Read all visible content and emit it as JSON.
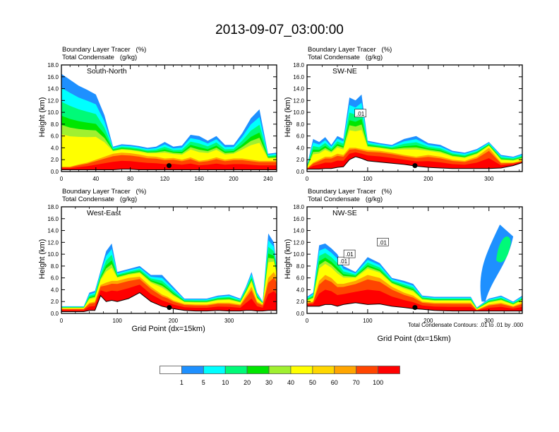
{
  "title": "2013-09-07_03:00:00",
  "chart_data": [
    {
      "type": "heatmap",
      "panel": "top-left",
      "cross_section": "South-North",
      "title_lines": [
        "Boundary Layer Tracer   (%)",
        "Total Condensate   (g/kg)"
      ],
      "ylabel": "Height (km)",
      "xlabel": "",
      "xlim": [
        0,
        250
      ],
      "ylim": [
        0,
        18
      ],
      "xticks": [
        "0",
        "40",
        "80",
        "120",
        "160",
        "200",
        "240"
      ],
      "xtick_values": [
        0,
        40,
        80,
        120,
        160,
        200,
        240
      ],
      "yticks": [
        "0.0",
        "2.0",
        "4.0",
        "6.0",
        "8.0",
        "10.0",
        "12.0",
        "14.0",
        "16.0",
        "18.0"
      ],
      "marker_point": {
        "x": 125,
        "y": 1.0
      },
      "tracer_profile": {
        "x": [
          0,
          10,
          20,
          30,
          40,
          50,
          60,
          70,
          80,
          90,
          100,
          110,
          120,
          130,
          140,
          150,
          160,
          170,
          180,
          190,
          200,
          210,
          220,
          230,
          240,
          250
        ],
        "top_km": [
          16.5,
          15.5,
          14.5,
          13.8,
          13,
          9.5,
          4.2,
          4.6,
          4.5,
          4.3,
          4.0,
          4.2,
          5.0,
          4.2,
          4.4,
          6.2,
          6.0,
          5.2,
          6.0,
          4.5,
          4.5,
          6.5,
          9.0,
          10.5,
          3.0,
          3.2
        ],
        "core_km": [
          0.8,
          0.8,
          1.2,
          1.5,
          2.0,
          2.5,
          3.0,
          3.2,
          3.1,
          2.9,
          2.6,
          2.5,
          2.2,
          2.3,
          2.0,
          2.4,
          1.8,
          2.0,
          2.4,
          2.0,
          2.2,
          2.2,
          2.0,
          1.8,
          1.8,
          1.8
        ],
        "terrain_km": [
          0.3,
          0.3,
          0.3,
          0.3,
          0.3,
          0.3,
          0.3,
          0.4,
          0.4,
          0.3,
          0.3,
          0.3,
          0.3,
          0.3,
          0.3,
          0.3,
          0.3,
          0.3,
          0.3,
          0.3,
          0.3,
          0.3,
          0.3,
          0.3,
          0.3,
          0.3
        ]
      }
    },
    {
      "type": "heatmap",
      "panel": "top-right",
      "cross_section": "SW-NE",
      "title_lines": [
        "Boundary Layer Tracer   (%)",
        "Total Condensate   (g/kg)"
      ],
      "ylabel": "Height (km)",
      "xlabel": "",
      "xlim": [
        0,
        355
      ],
      "ylim": [
        0,
        18
      ],
      "xticks": [
        "0",
        "100",
        "200",
        "300"
      ],
      "xtick_values": [
        0,
        100,
        200,
        300
      ],
      "yticks": [
        "0.0",
        "2.0",
        "4.0",
        "6.0",
        "8.0",
        "10.0",
        "12.0",
        "14.0",
        "16.0",
        "18.0"
      ],
      "marker_point": {
        "x": 178,
        "y": 1.0
      },
      "contour_labels": [
        ".01"
      ],
      "tracer_profile": {
        "x": [
          0,
          10,
          20,
          30,
          40,
          50,
          60,
          70,
          80,
          90,
          100,
          120,
          140,
          160,
          180,
          200,
          220,
          240,
          260,
          280,
          300,
          320,
          340,
          355
        ],
        "top_km": [
          1.0,
          5.5,
          5.0,
          5.8,
          4.5,
          6.0,
          5.5,
          12.5,
          12.0,
          13.0,
          5.2,
          4.8,
          4.5,
          5.5,
          6.0,
          4.8,
          4.5,
          3.5,
          3.2,
          3.8,
          5.0,
          2.8,
          2.5,
          3.0
        ],
        "core_km": [
          0.5,
          1.5,
          2.0,
          2.5,
          2.5,
          3.0,
          2.8,
          4.0,
          4.0,
          3.8,
          3.6,
          3.5,
          3.2,
          2.8,
          2.5,
          2.8,
          2.5,
          2.0,
          1.8,
          2.5,
          4.0,
          1.5,
          1.5,
          1.8
        ],
        "terrain_km": [
          0.4,
          0.4,
          0.4,
          0.5,
          0.5,
          0.7,
          0.8,
          2.0,
          2.5,
          2.2,
          1.8,
          1.6,
          1.4,
          1.2,
          0.9,
          0.7,
          0.6,
          0.5,
          0.5,
          0.5,
          0.5,
          0.6,
          1.0,
          1.5
        ]
      }
    },
    {
      "type": "heatmap",
      "panel": "bottom-left",
      "cross_section": "West-East",
      "title_lines": [
        "Boundary Layer Tracer   (%)",
        "Total Condensate   (g/kg)"
      ],
      "ylabel": "Height (km)",
      "xlabel": "Grid Point (dx=15km)",
      "xlim": [
        0,
        385
      ],
      "ylim": [
        0,
        18
      ],
      "xticks": [
        "0",
        "100",
        "200",
        "300"
      ],
      "xtick_values": [
        0,
        100,
        200,
        300
      ],
      "yticks": [
        "0.0",
        "2.0",
        "4.0",
        "6.0",
        "8.0",
        "10.0",
        "12.0",
        "14.0",
        "16.0",
        "18.0"
      ],
      "marker_point": {
        "x": 193,
        "y": 1.0
      },
      "tracer_profile": {
        "x": [
          0,
          20,
          40,
          50,
          60,
          70,
          80,
          90,
          100,
          120,
          140,
          160,
          180,
          190,
          200,
          220,
          240,
          260,
          280,
          300,
          320,
          330,
          340,
          350,
          360,
          370,
          380,
          385
        ],
        "top_km": [
          1.2,
          1.2,
          1.2,
          3.5,
          3.8,
          7.2,
          10.5,
          11.8,
          7.0,
          7.5,
          8.0,
          6.5,
          6.5,
          5.5,
          4.5,
          2.5,
          2.5,
          2.5,
          3.0,
          3.2,
          2.5,
          4.5,
          7.0,
          3.5,
          2.0,
          13.5,
          12.0,
          8.0
        ],
        "core_km": [
          0.8,
          0.8,
          0.8,
          1.8,
          2.0,
          4.8,
          5.2,
          5.5,
          5.5,
          6.0,
          6.2,
          4.5,
          3.2,
          2.8,
          2.2,
          1.6,
          1.5,
          1.5,
          1.8,
          1.8,
          1.5,
          3.0,
          4.5,
          2.0,
          1.5,
          6.0,
          7.0,
          6.0
        ],
        "terrain_km": [
          0.3,
          0.3,
          0.3,
          0.5,
          0.5,
          3.0,
          2.0,
          2.2,
          2.0,
          2.5,
          3.5,
          2.0,
          1.2,
          1.0,
          0.8,
          0.5,
          0.4,
          0.4,
          0.5,
          0.4,
          0.4,
          0.5,
          0.5,
          0.4,
          0.4,
          0.5,
          0.5,
          0.5
        ]
      }
    },
    {
      "type": "heatmap",
      "panel": "bottom-right",
      "cross_section": "NW-SE",
      "title_lines": [
        "Boundary Layer Tracer   (%)",
        "Total Condensate   (g/kg)"
      ],
      "ylabel": "Height (km)",
      "xlabel": "Grid Point (dx=15km)",
      "xlim": [
        0,
        355
      ],
      "ylim": [
        0,
        18
      ],
      "xticks": [
        "0",
        "100",
        "200",
        "300"
      ],
      "xtick_values": [
        0,
        100,
        200,
        300
      ],
      "yticks": [
        "0.0",
        "2.0",
        "4.0",
        "6.0",
        "8.0",
        "10.0",
        "12.0",
        "14.0",
        "16.0",
        "18.0"
      ],
      "marker_point": {
        "x": 178,
        "y": 1.0
      },
      "contour_labels": [
        ".01",
        ".01",
        ".01"
      ],
      "footnote": "Total Condensate Contours: .01 to .01 by .000",
      "tracer_profile": {
        "x": [
          0,
          10,
          20,
          30,
          40,
          50,
          60,
          80,
          100,
          120,
          140,
          160,
          175,
          190,
          210,
          240,
          270,
          280,
          300,
          320,
          340,
          355
        ],
        "top_km": [
          2.8,
          3.5,
          11.5,
          11.8,
          11.0,
          10.0,
          8.0,
          7.0,
          9.5,
          8.5,
          6.0,
          5.5,
          5.0,
          3.0,
          2.8,
          2.8,
          2.8,
          1.0,
          2.5,
          3.0,
          2.0,
          3.0
        ],
        "core_km": [
          1.8,
          2.0,
          5.5,
          6.5,
          6.0,
          5.0,
          5.0,
          5.5,
          6.5,
          6.0,
          4.5,
          3.5,
          3.0,
          2.0,
          1.8,
          1.8,
          1.8,
          0.6,
          1.5,
          1.8,
          1.2,
          1.8
        ],
        "terrain_km": [
          1.2,
          1.2,
          1.2,
          1.5,
          1.5,
          1.2,
          1.5,
          1.8,
          1.5,
          1.6,
          1.2,
          1.0,
          0.8,
          0.7,
          0.5,
          0.4,
          0.4,
          0.4,
          0.4,
          0.4,
          0.4,
          0.4
        ]
      },
      "upper_plume": {
        "x_range": [
          280,
          340
        ],
        "y_range": [
          2,
          15
        ]
      }
    }
  ],
  "colorbar": {
    "levels": [
      "1",
      "5",
      "10",
      "20",
      "30",
      "40",
      "50",
      "60",
      "70",
      "100"
    ],
    "colors": [
      "#ffffff",
      "#1e90ff",
      "#00ffff",
      "#00fa78",
      "#00e600",
      "#a0f030",
      "#ffff00",
      "#ffd700",
      "#ffa500",
      "#ff4500",
      "#ff0000"
    ]
  }
}
